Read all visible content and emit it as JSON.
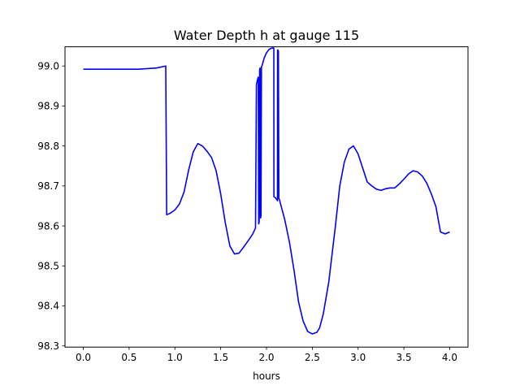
{
  "chart_data": {
    "type": "line",
    "title": "Water Depth h at gauge 115",
    "xlabel": "hours",
    "ylabel": "",
    "xlim": [
      -0.2,
      4.2
    ],
    "ylim": [
      98.297,
      99.048
    ],
    "x_ticks": [
      0.0,
      0.5,
      1.0,
      1.5,
      2.0,
      2.5,
      3.0,
      3.5,
      4.0
    ],
    "x_tick_labels": [
      "0.0",
      "0.5",
      "1.0",
      "1.5",
      "2.0",
      "2.5",
      "3.0",
      "3.5",
      "4.0"
    ],
    "y_ticks": [
      98.3,
      98.4,
      98.5,
      98.6,
      98.7,
      98.8,
      98.9,
      99.0
    ],
    "y_tick_labels": [
      "98.3",
      "98.4",
      "98.5",
      "98.6",
      "98.7",
      "98.8",
      "98.9",
      "99.0"
    ],
    "grid": false,
    "series": [
      {
        "color": "#0000ff",
        "x": [
          0.0,
          0.3,
          0.6,
          0.8,
          0.9,
          0.91,
          0.95,
          1.0,
          1.05,
          1.1,
          1.15,
          1.2,
          1.25,
          1.3,
          1.35,
          1.4,
          1.45,
          1.5,
          1.55,
          1.6,
          1.65,
          1.7,
          1.75,
          1.8,
          1.85,
          1.88,
          1.89,
          1.9,
          1.91,
          1.915,
          1.92,
          1.925,
          1.93,
          1.935,
          1.94,
          1.945,
          1.95,
          1.975,
          2.0,
          2.03,
          2.06,
          2.08,
          2.081,
          2.1,
          2.12,
          2.121,
          2.125,
          2.13,
          2.135,
          2.14,
          2.15,
          2.2,
          2.25,
          2.3,
          2.35,
          2.4,
          2.45,
          2.5,
          2.55,
          2.58,
          2.62,
          2.68,
          2.75,
          2.8,
          2.85,
          2.9,
          2.95,
          3.0,
          3.05,
          3.1,
          3.15,
          3.2,
          3.25,
          3.3,
          3.35,
          3.4,
          3.45,
          3.5,
          3.55,
          3.6,
          3.65,
          3.7,
          3.75,
          3.8,
          3.85,
          3.9,
          3.95,
          4.0
        ],
        "y": [
          98.992,
          98.992,
          98.992,
          98.995,
          99.0,
          98.628,
          98.632,
          98.64,
          98.655,
          98.685,
          98.74,
          98.785,
          98.806,
          98.8,
          98.787,
          98.771,
          98.738,
          98.68,
          98.608,
          98.55,
          98.53,
          98.532,
          98.547,
          98.563,
          98.58,
          98.595,
          98.953,
          98.965,
          98.972,
          98.605,
          98.61,
          98.99,
          98.995,
          98.62,
          98.625,
          98.998,
          99.0,
          99.02,
          99.033,
          99.042,
          99.045,
          99.045,
          98.673,
          98.67,
          98.663,
          99.04,
          99.04,
          99.037,
          98.668,
          98.667,
          98.658,
          98.615,
          98.56,
          98.49,
          98.41,
          98.362,
          98.336,
          98.33,
          98.334,
          98.345,
          98.38,
          98.46,
          98.595,
          98.7,
          98.76,
          98.792,
          98.8,
          98.78,
          98.745,
          98.71,
          98.7,
          98.692,
          98.689,
          98.693,
          98.695,
          98.695,
          98.705,
          98.717,
          98.73,
          98.738,
          98.735,
          98.725,
          98.707,
          98.68,
          98.648,
          98.585,
          98.58,
          98.585
        ]
      }
    ]
  }
}
